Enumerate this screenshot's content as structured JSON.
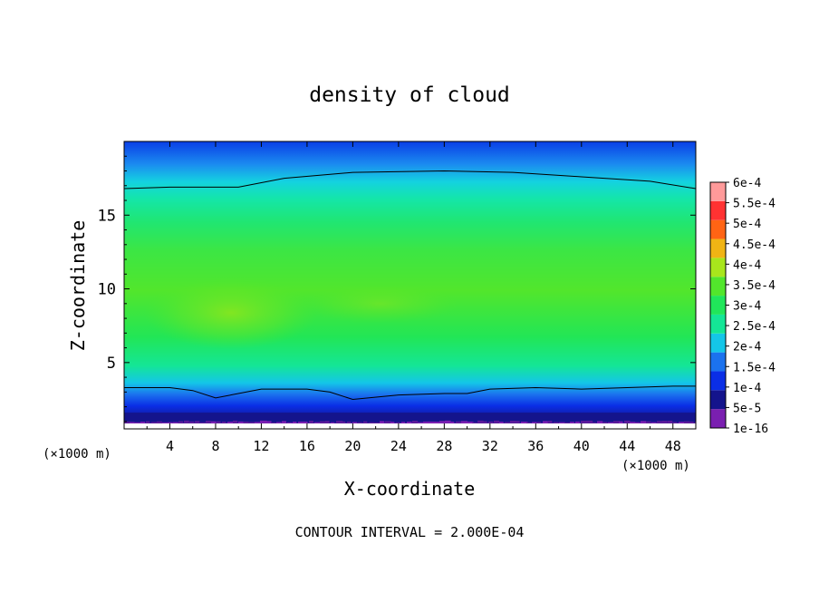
{
  "chart_data": {
    "type": "heatmap",
    "title": "density of cloud",
    "xlabel": "X-coordinate",
    "ylabel": "Z-coordinate",
    "x_unit_left": "(×1000 m)",
    "x_unit_right": "(×1000 m)",
    "footer": "CONTOUR INTERVAL = 2.000E-04",
    "xlim": [
      0,
      50
    ],
    "ylim": [
      0.5,
      20
    ],
    "x_ticks": [
      4,
      8,
      12,
      16,
      20,
      24,
      28,
      32,
      36,
      40,
      44,
      48
    ],
    "x_tick_labels": [
      "4",
      "8",
      "12",
      "16",
      "20",
      "24",
      "28",
      "32",
      "36",
      "40",
      "44",
      "48"
    ],
    "y_ticks": [
      5,
      10,
      15
    ],
    "y_tick_labels": [
      "5",
      "10",
      "15"
    ],
    "colorbar": {
      "levels": [
        1e-16,
        5e-05,
        0.0001,
        0.00015,
        0.0002,
        0.00025,
        0.0003,
        0.00035,
        0.0004,
        0.00045,
        0.0005,
        0.00055,
        0.0006
      ],
      "labels": [
        "1e-16",
        "5e-5",
        "1e-4",
        "1.5e-4",
        "2e-4",
        "2.5e-4",
        "3e-4",
        "3.5e-4",
        "4e-4",
        "4.5e-4",
        "5e-4",
        "5.5e-4",
        "6e-4"
      ],
      "colors": [
        "#7a1fb0",
        "#14148c",
        "#0a2ee6",
        "#1b72ee",
        "#14c6e8",
        "#14e696",
        "#20e65a",
        "#52e62c",
        "#a8e61c",
        "#f0b414",
        "#ff6414",
        "#ff3232",
        "#ff9a9a"
      ]
    },
    "contour_lines": [
      {
        "level": 0.0002,
        "x": [
          0,
          4,
          10,
          14,
          20,
          28,
          34,
          40,
          46,
          50
        ],
        "y": [
          16.8,
          16.9,
          16.9,
          17.5,
          17.9,
          18.0,
          17.9,
          17.6,
          17.3,
          16.8
        ]
      },
      {
        "level": 0.0001,
        "x": [
          0,
          4,
          6,
          8,
          12,
          16,
          18,
          20,
          24,
          28,
          30,
          32,
          36,
          40,
          44,
          48,
          50
        ],
        "y": [
          3.3,
          3.3,
          3.1,
          2.6,
          3.2,
          3.2,
          3.0,
          2.5,
          2.8,
          2.9,
          2.9,
          3.2,
          3.3,
          3.2,
          3.3,
          3.4,
          3.4
        ]
      }
    ],
    "max_region": {
      "x": 9,
      "z": 8.5,
      "value": 0.00038
    }
  }
}
